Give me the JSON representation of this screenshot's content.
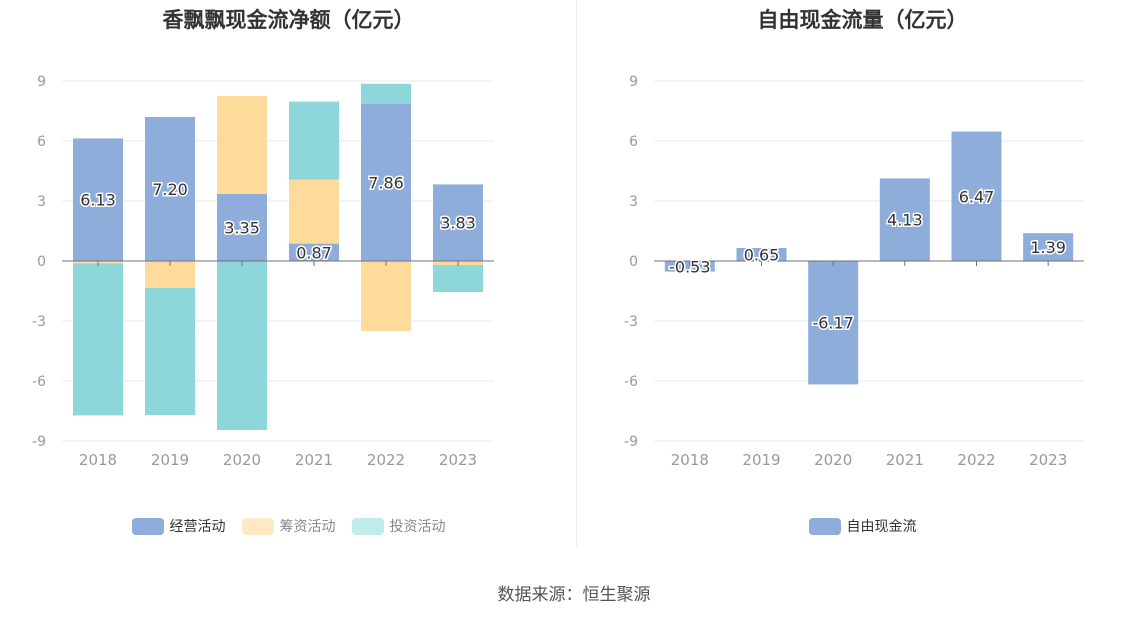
{
  "source_text": "数据来源：恒生聚源",
  "chart_data": [
    {
      "type": "bar",
      "stacked": true,
      "title": "香飘飘现金流净额（亿元）",
      "categories": [
        "2018",
        "2019",
        "2020",
        "2021",
        "2022",
        "2023"
      ],
      "ylim": [
        -9,
        9
      ],
      "yticks": [
        9,
        6,
        3,
        0,
        -3,
        -6,
        -9
      ],
      "grid": true,
      "legend_position": "bottom-center",
      "series": [
        {
          "name": "经营活动",
          "color": "#8eaddb",
          "values": [
            6.13,
            7.2,
            3.35,
            0.87,
            7.86,
            3.83
          ],
          "labels": [
            "6.13",
            "7.20",
            "3.35",
            "0.87",
            "7.86",
            "3.83"
          ]
        },
        {
          "name": "筹资活动",
          "color": "#fedb9b",
          "values": [
            -0.12,
            -1.35,
            4.9,
            3.2,
            -3.5,
            -0.2
          ]
        },
        {
          "name": "投资活动",
          "color": "#8dd7da",
          "values": [
            -7.6,
            -6.35,
            -8.45,
            3.9,
            1.0,
            -1.35
          ]
        }
      ]
    },
    {
      "type": "bar",
      "stacked": false,
      "title": "自由现金流量（亿元）",
      "categories": [
        "2018",
        "2019",
        "2020",
        "2021",
        "2022",
        "2023"
      ],
      "ylim": [
        -9,
        9
      ],
      "yticks": [
        9,
        6,
        3,
        0,
        -3,
        -6,
        -9
      ],
      "grid": true,
      "legend_position": "bottom-center",
      "series": [
        {
          "name": "自由现金流",
          "color": "#8eaddb",
          "values": [
            -0.53,
            0.65,
            -6.17,
            4.13,
            6.47,
            1.39
          ],
          "labels": [
            "-0.53",
            "0.65",
            "-6.17",
            "4.13",
            "6.47",
            "1.39"
          ]
        }
      ]
    }
  ]
}
